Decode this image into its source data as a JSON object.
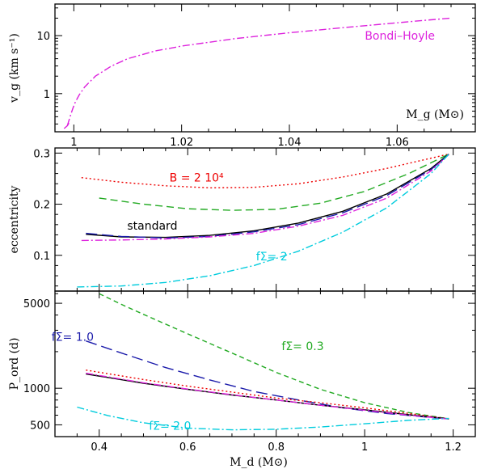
{
  "chart_data": [
    {
      "id": "top",
      "type": "line",
      "ylabel": "v_g (km s⁻¹)",
      "x_axis_label": "M_g (M⊙)",
      "xlim": [
        0.9965,
        1.0745
      ],
      "ylim_log": [
        0.22,
        35
      ],
      "xticks": [
        1,
        1.02,
        1.04,
        1.06
      ],
      "xtick_labels": [
        "1",
        "1.02",
        "1.04",
        "1.06"
      ],
      "yticks": [
        1,
        10
      ],
      "ytick_labels": [
        "1",
        "10"
      ],
      "annotations": [
        {
          "text": "Bondi–Hoyle",
          "x": 1.0605,
          "y": 8.5,
          "color": "#dd22dd"
        }
      ],
      "series": [
        {
          "name": "Bondi-Hoyle",
          "color": "#dd22dd",
          "dash": "9 3 2 3",
          "x": [
            0.9988,
            0.9993,
            0.9998,
            1.0003,
            1.001,
            1.002,
            1.004,
            1.007,
            1.01,
            1.015,
            1.02,
            1.03,
            1.04,
            1.05,
            1.06,
            1.065,
            1.07
          ],
          "y": [
            0.28,
            0.4,
            0.55,
            0.72,
            0.95,
            1.3,
            2.0,
            3.0,
            4.0,
            5.4,
            6.6,
            8.9,
            11.2,
            13.7,
            16.6,
            18.3,
            20.0
          ]
        },
        {
          "name": "Bondi-Hoyle start",
          "color": "#dd22dd",
          "dash": "",
          "x": [
            0.9982,
            0.9988,
            0.9991
          ],
          "y": [
            0.25,
            0.28,
            0.31
          ]
        }
      ]
    },
    {
      "id": "middle",
      "type": "line",
      "ylabel": "eccentricity",
      "xlim": [
        0.3,
        1.25
      ],
      "ylim": [
        0.03,
        0.31
      ],
      "yticks": [
        0.1,
        0.2,
        0.3
      ],
      "ytick_labels": [
        "0.1",
        "0.2",
        "0.3"
      ],
      "annotations": [
        {
          "text": "B = 2 10⁴",
          "x": 0.62,
          "y": 0.244,
          "color": "#ee0000"
        },
        {
          "text": "standard",
          "x": 0.52,
          "y": 0.15,
          "color": "#000000"
        },
        {
          "text": "fΣ= 2",
          "x": 0.79,
          "y": 0.09,
          "color": "#00ccdd"
        }
      ],
      "series": [
        {
          "name": "B = 2 10^4",
          "color": "#ee0000",
          "dash": "2 3",
          "x": [
            0.36,
            0.45,
            0.55,
            0.65,
            0.75,
            0.85,
            0.95,
            1.05,
            1.15,
            1.19
          ],
          "y": [
            0.252,
            0.243,
            0.236,
            0.232,
            0.233,
            0.24,
            0.253,
            0.27,
            0.29,
            0.298
          ]
        },
        {
          "name": "green dashed",
          "color": "#22aa22",
          "dash": "9 5",
          "x": [
            0.4,
            0.5,
            0.6,
            0.7,
            0.8,
            0.9,
            1.0,
            1.1,
            1.19
          ],
          "y": [
            0.212,
            0.2,
            0.191,
            0.188,
            0.19,
            0.202,
            0.225,
            0.26,
            0.298
          ]
        },
        {
          "name": "standard",
          "color": "#000000",
          "dash": "",
          "x": [
            0.37,
            0.45,
            0.55,
            0.65,
            0.75,
            0.85,
            0.95,
            1.05,
            1.15,
            1.19
          ],
          "y": [
            0.141,
            0.136,
            0.135,
            0.139,
            0.148,
            0.163,
            0.186,
            0.22,
            0.27,
            0.298
          ]
        },
        {
          "name": "blue long dash",
          "color": "#1a1aaa",
          "dash": "14 6",
          "x": [
            0.37,
            0.45,
            0.55,
            0.65,
            0.75,
            0.85,
            0.95,
            1.05,
            1.15,
            1.19
          ],
          "y": [
            0.143,
            0.137,
            0.134,
            0.137,
            0.146,
            0.16,
            0.183,
            0.217,
            0.268,
            0.297
          ]
        },
        {
          "name": "magenta dash-dot",
          "color": "#dd22dd",
          "dash": "9 3 2 3",
          "x": [
            0.36,
            0.45,
            0.55,
            0.65,
            0.75,
            0.85,
            0.95,
            1.05,
            1.15,
            1.19
          ],
          "y": [
            0.129,
            0.13,
            0.132,
            0.136,
            0.143,
            0.157,
            0.178,
            0.212,
            0.265,
            0.297
          ]
        },
        {
          "name": "f=2",
          "color": "#00ccdd",
          "dash": "9 3 2 3",
          "x": [
            0.35,
            0.45,
            0.55,
            0.65,
            0.75,
            0.85,
            0.95,
            1.05,
            1.15,
            1.19
          ],
          "y": [
            0.038,
            0.04,
            0.047,
            0.06,
            0.08,
            0.108,
            0.145,
            0.193,
            0.26,
            0.298
          ]
        }
      ]
    },
    {
      "id": "bottom",
      "type": "line",
      "ylabel": "P_ord (d)",
      "xlabel": "M_d (M⊙)",
      "xlim": [
        0.3,
        1.25
      ],
      "ylim_log": [
        400,
        6300
      ],
      "xticks": [
        0.4,
        0.6,
        0.8,
        1,
        1.2
      ],
      "xtick_labels": [
        "0.4",
        "0.6",
        "0.8",
        "1",
        "1.2"
      ],
      "yticks": [
        500,
        1000,
        5000
      ],
      "ytick_labels": [
        "500",
        "1000",
        "5000"
      ],
      "annotations": [
        {
          "text": "fΣ= 1.0",
          "x": 0.34,
          "y": 2450,
          "color": "#1a1aaa"
        },
        {
          "text": "fΣ= 0.3",
          "x": 0.86,
          "y": 2060,
          "color": "#22aa22"
        },
        {
          "text": "fΣ= 2.0",
          "x": 0.56,
          "y": 455,
          "color": "#00ccdd"
        }
      ],
      "series": [
        {
          "name": "f=0.3",
          "color": "#22aa22",
          "dash": "6 4",
          "x": [
            0.4,
            0.45,
            0.5,
            0.6,
            0.7,
            0.8,
            0.9,
            1.0,
            1.1,
            1.19
          ],
          "y": [
            6000,
            4900,
            4050,
            2800,
            1950,
            1350,
            980,
            760,
            630,
            560
          ]
        },
        {
          "name": "f=1.0",
          "color": "#1a1aaa",
          "dash": "14 6",
          "x": [
            0.37,
            0.45,
            0.55,
            0.65,
            0.75,
            0.85,
            0.95,
            1.05,
            1.15,
            1.19
          ],
          "y": [
            2450,
            1950,
            1480,
            1170,
            940,
            800,
            690,
            620,
            575,
            560
          ]
        },
        {
          "name": "red dotted",
          "color": "#ee0000",
          "dash": "2 3",
          "x": [
            0.37,
            0.5,
            0.6,
            0.7,
            0.8,
            0.9,
            1.0,
            1.1,
            1.19
          ],
          "y": [
            1410,
            1180,
            1040,
            930,
            830,
            760,
            690,
            620,
            560
          ]
        },
        {
          "name": "standard",
          "color": "#000000",
          "dash": "",
          "x": [
            0.37,
            0.5,
            0.6,
            0.7,
            0.8,
            0.9,
            1.0,
            1.1,
            1.19
          ],
          "y": [
            1310,
            1100,
            980,
            880,
            800,
            725,
            665,
            605,
            560
          ]
        },
        {
          "name": "magenta",
          "color": "#dd22dd",
          "dash": "9 3 2 3",
          "x": [
            0.37,
            0.5,
            0.6,
            0.7,
            0.8,
            0.9,
            1.0,
            1.1,
            1.19
          ],
          "y": [
            1330,
            1110,
            985,
            885,
            800,
            725,
            660,
            600,
            558
          ]
        },
        {
          "name": "f=2.0",
          "color": "#00ccdd",
          "dash": "9 3 2 3",
          "x": [
            0.35,
            0.42,
            0.5,
            0.6,
            0.7,
            0.8,
            0.9,
            1.0,
            1.1,
            1.19
          ],
          "y": [
            700,
            595,
            520,
            470,
            455,
            460,
            480,
            510,
            545,
            565
          ]
        }
      ]
    }
  ]
}
